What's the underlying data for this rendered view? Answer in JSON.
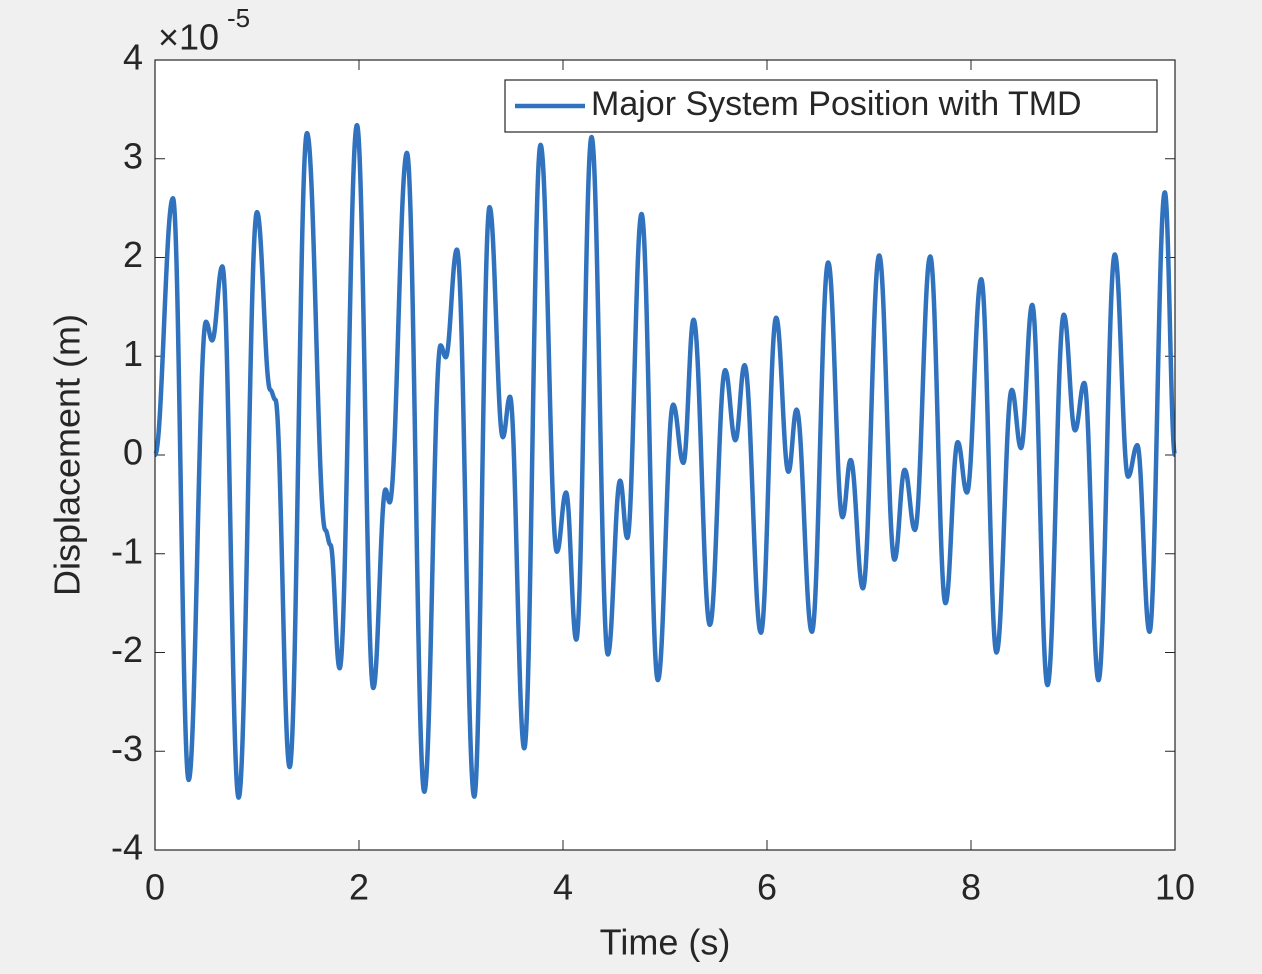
{
  "chart_data": {
    "type": "line",
    "x_label": "Time (s)",
    "y_label": "Displacement (m)",
    "y_multiplier": {
      "base": "×10",
      "exponent": "-5"
    },
    "x": [
      0,
      0.176,
      0.33,
      0.5,
      0.56,
      0.66,
      0.82,
      1.0,
      1.13,
      1.18,
      1.32,
      1.49,
      1.67,
      1.72,
      1.81,
      1.98,
      2.14,
      2.26,
      2.3,
      2.47,
      2.64,
      2.8,
      2.85,
      2.96,
      3.13,
      3.28,
      3.41,
      3.48,
      3.62,
      3.78,
      3.94,
      4.03,
      4.13,
      4.28,
      4.44,
      4.56,
      4.63,
      4.77,
      4.93,
      5.08,
      5.18,
      5.28,
      5.44,
      5.59,
      5.69,
      5.78,
      5.94,
      6.09,
      6.21,
      6.29,
      6.44,
      6.6,
      6.74,
      6.82,
      6.94,
      7.1,
      7.25,
      7.35,
      7.45,
      7.6,
      7.75,
      7.87,
      7.96,
      8.1,
      8.25,
      8.4,
      8.49,
      8.6,
      8.75,
      8.91,
      9.02,
      9.11,
      9.25,
      9.41,
      9.54,
      9.63,
      9.75,
      9.9,
      10
    ],
    "series": [
      {
        "name": "Major System Position with TMD",
        "color": "#3072bd",
        "values": [
          0,
          2.6,
          -3.29,
          1.35,
          1.16,
          1.91,
          -3.47,
          2.46,
          0.66,
          0.56,
          -3.16,
          3.26,
          -0.76,
          -0.91,
          -2.16,
          3.34,
          -2.36,
          -0.35,
          -0.48,
          3.06,
          -3.41,
          1.11,
          0.99,
          2.08,
          -3.46,
          2.51,
          0.18,
          0.59,
          -2.97,
          3.14,
          -0.98,
          -0.38,
          -1.87,
          3.22,
          -2.02,
          -0.26,
          -0.84,
          2.44,
          -2.28,
          0.51,
          -0.08,
          1.37,
          -1.72,
          0.86,
          0.15,
          0.91,
          -1.8,
          1.39,
          -0.17,
          0.46,
          -1.79,
          1.95,
          -0.63,
          -0.05,
          -1.35,
          2.02,
          -1.06,
          -0.15,
          -0.76,
          2.01,
          -1.5,
          0.13,
          -0.38,
          1.78,
          -2.0,
          0.66,
          0.07,
          1.52,
          -2.33,
          1.42,
          0.25,
          0.73,
          -2.28,
          2.03,
          -0.22,
          0.1,
          -1.79,
          2.66,
          0
        ]
      }
    ],
    "xlim": [
      0,
      10
    ],
    "xticks": [
      0,
      2,
      4,
      6,
      8,
      10
    ],
    "ylim": [
      -4,
      4
    ],
    "yticks": [
      -4,
      -3,
      -2,
      -1,
      0,
      1,
      2,
      3,
      4
    ],
    "grid": false,
    "legend": "top-right"
  }
}
